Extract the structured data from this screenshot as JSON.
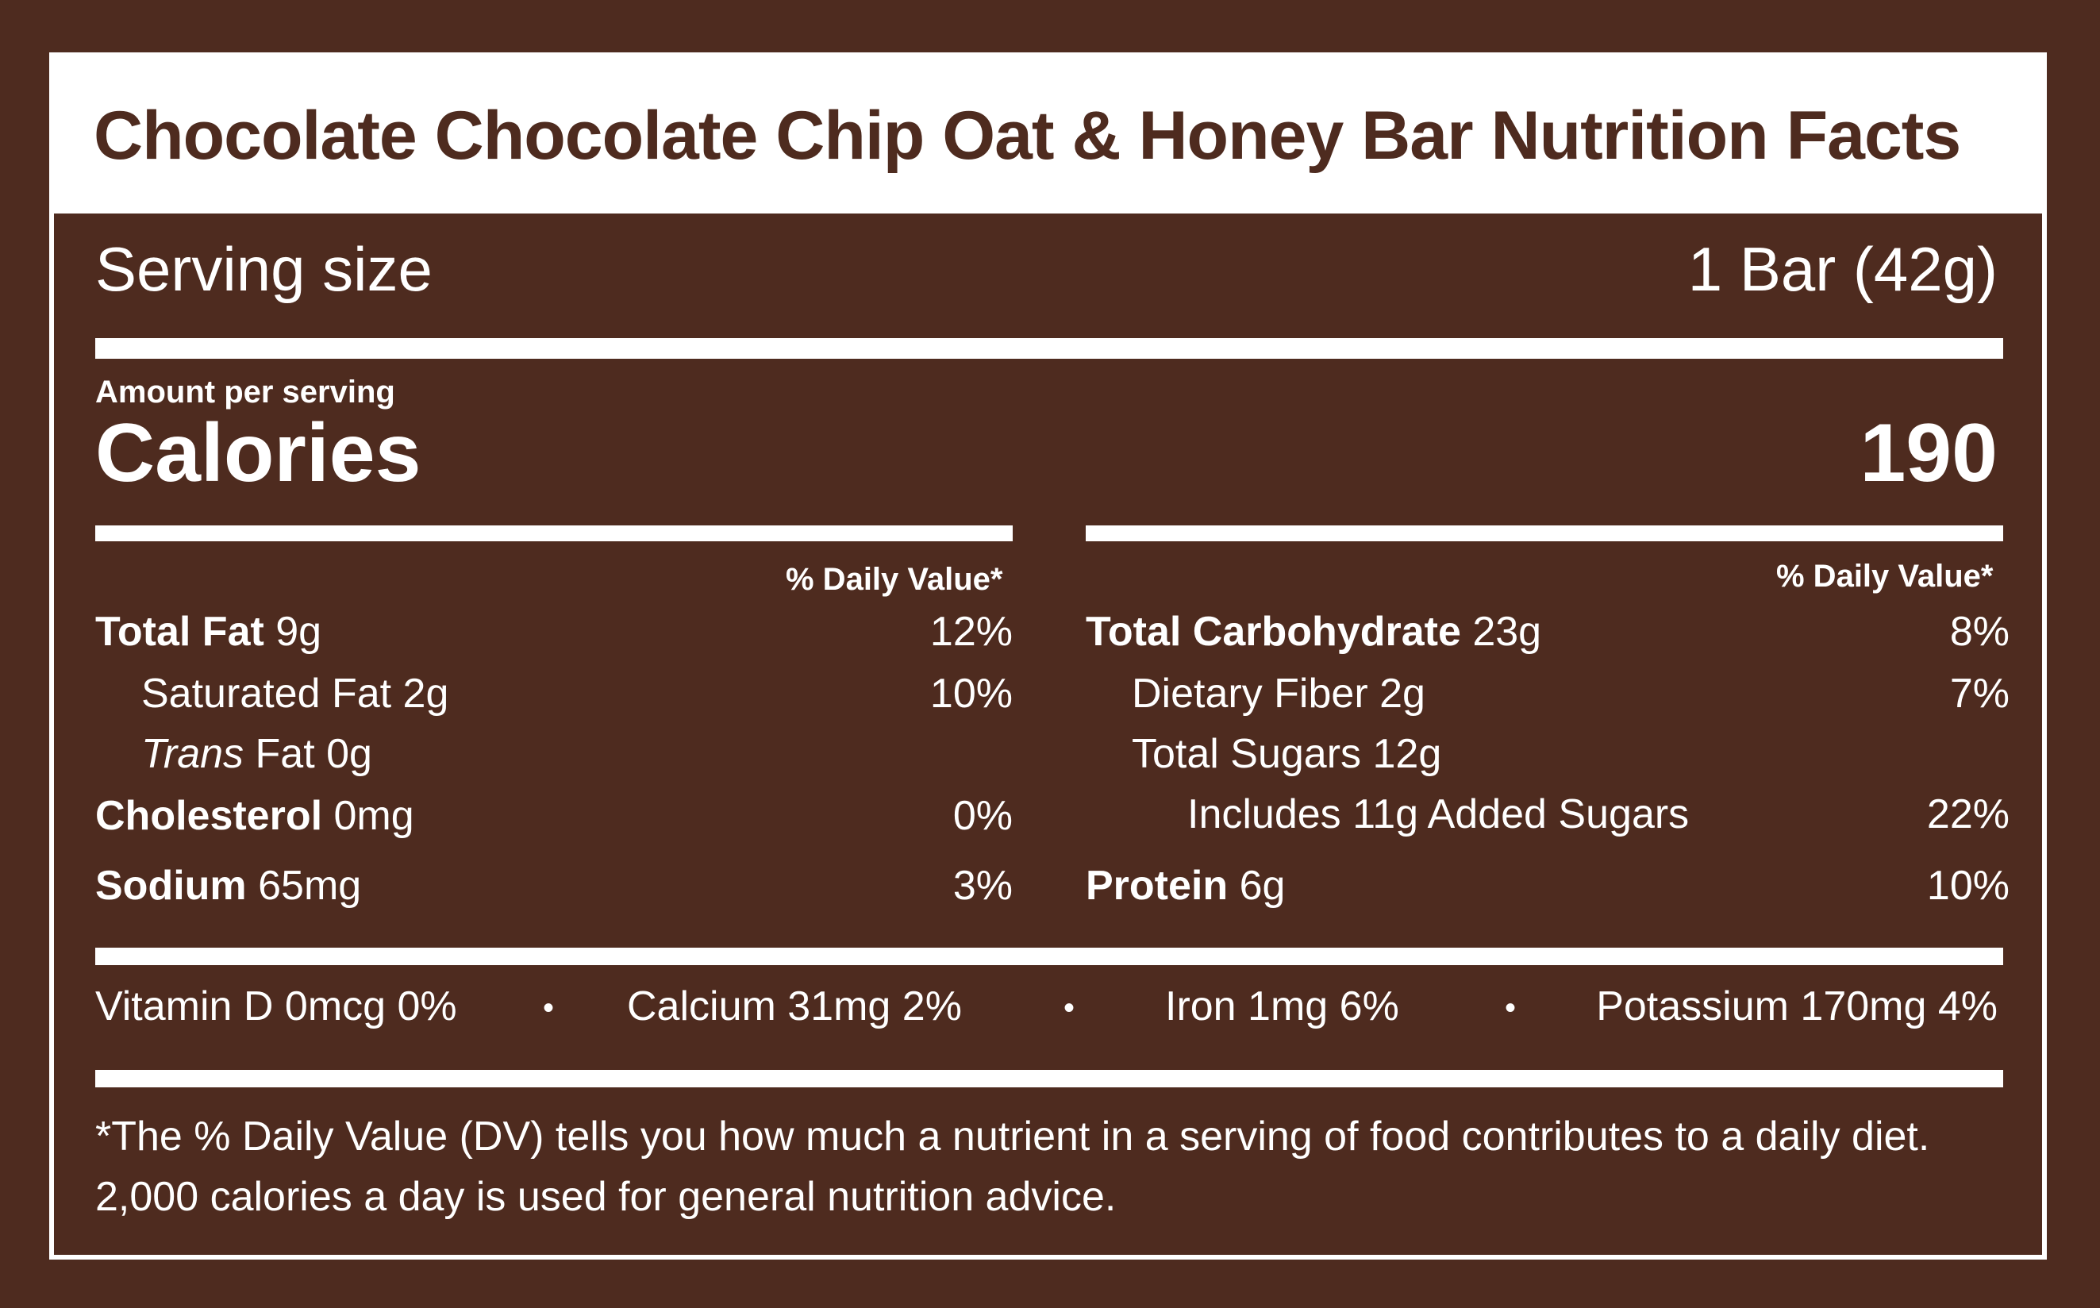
{
  "title": "Chocolate Chocolate Chip Oat & Honey Bar Nutrition Facts",
  "serving": {
    "label": "Serving size",
    "value": "1 Bar (42g)"
  },
  "calories": {
    "amount_label": "Amount per serving",
    "label": "Calories",
    "value": "190"
  },
  "dv_header": "% Daily Value*",
  "left_rows": [
    {
      "name": "Total Fat",
      "amount": "9g",
      "dv": "12%"
    },
    {
      "name": "Saturated Fat",
      "amount": "2g",
      "dv": "10%"
    },
    {
      "name_italic": "Trans",
      "name": "Fat",
      "amount": "0g",
      "dv": ""
    },
    {
      "name": "Cholesterol",
      "amount": "0mg",
      "dv": "0%"
    },
    {
      "name": "Sodium",
      "amount": "65mg",
      "dv": "3%"
    }
  ],
  "right_rows": [
    {
      "name": "Total Carbohydrate",
      "amount": "23g",
      "dv": "8%"
    },
    {
      "name": "Dietary Fiber",
      "amount": "2g",
      "dv": "7%"
    },
    {
      "name": "Total Sugars",
      "amount": "12g",
      "dv": ""
    },
    {
      "name": "Includes 11g Added Sugars",
      "amount": "",
      "dv": "22%"
    },
    {
      "name": "Protein",
      "amount": "6g",
      "dv": "10%"
    }
  ],
  "vitamins": [
    "Vitamin D 0mcg 0%",
    "Calcium 31mg 2%",
    "Iron 1mg 6%",
    "Potassium 170mg 4%"
  ],
  "separator": "•",
  "footnote": "*The % Daily Value (DV) tells you how much a nutrient in a serving of food contributes to a daily diet. 2,000 calories a day is used for general nutrition advice.",
  "colors": {
    "background": "#4e2b1f",
    "text": "#ffffff"
  }
}
